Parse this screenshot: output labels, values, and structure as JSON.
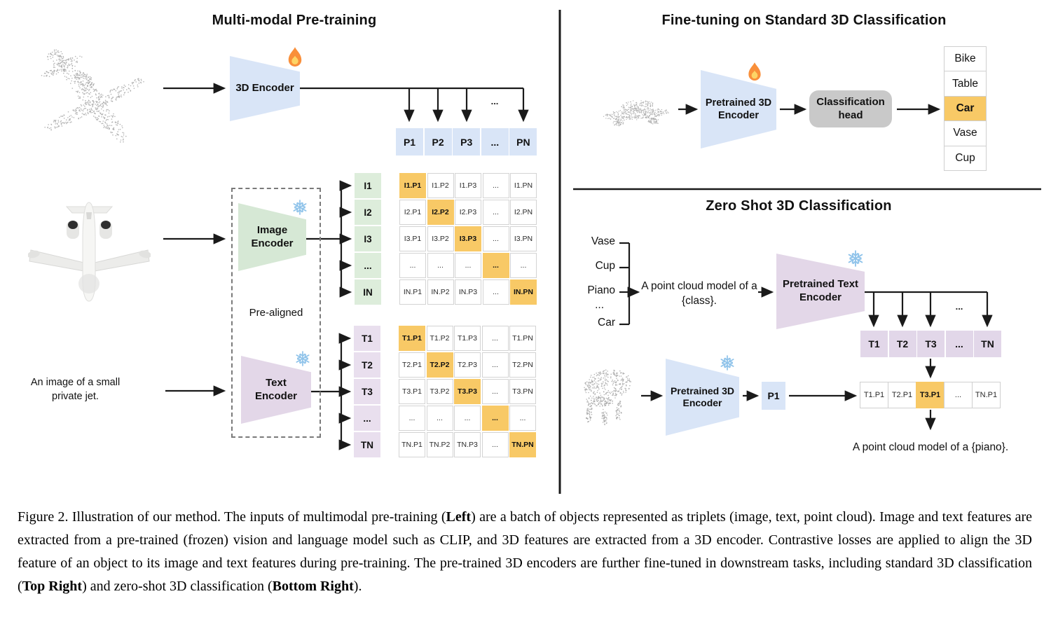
{
  "colors": {
    "blue": "#D9E5F7",
    "green": "#D6E8D5",
    "green_cell": "#DDEDDB",
    "purple": "#E3D7E8",
    "purple_cell": "#E9DFEE",
    "purple_row": "#E2D7E9",
    "highlight": "#F8C966",
    "gray": "#C9C9C9",
    "dot": "#A8A8A8",
    "snow": "#8FC3EA",
    "flame_outer": "#F98F3A",
    "flame_inner": "#FDD466",
    "line": "#1A1A1A"
  },
  "left": {
    "title": "Multi-modal Pre-training",
    "encoder_3d_label": "3D Encoder",
    "p_row": [
      "P1",
      "P2",
      "P3",
      "...",
      "PN"
    ],
    "fan_ellipsis": "...",
    "image_rows": [
      "I1",
      "I2",
      "I3",
      "...",
      "IN"
    ],
    "image_matrix": [
      [
        "I1.P1",
        "I1.P2",
        "I1.P3",
        "...",
        "I1.PN"
      ],
      [
        "I2.P1",
        "I2.P2",
        "I2.P3",
        "...",
        "I2.PN"
      ],
      [
        "I3.P1",
        "I3.P2",
        "I3.P3",
        "...",
        "I3.PN"
      ],
      [
        "...",
        "...",
        "...",
        "...",
        "..."
      ],
      [
        "IN.P1",
        "IN.P2",
        "IN.P3",
        "...",
        "IN.PN"
      ]
    ],
    "image_encoder_label": "Image Encoder",
    "pre_aligned": "Pre-aligned",
    "text_encoder_label": "Text Encoder",
    "text_prompt": "An image of a small private jet.",
    "text_rows": [
      "T1",
      "T2",
      "T3",
      "...",
      "TN"
    ],
    "text_matrix": [
      [
        "T1.P1",
        "T1.P2",
        "T1.P3",
        "...",
        "T1.PN"
      ],
      [
        "T2.P1",
        "T2.P2",
        "T2.P3",
        "...",
        "T2.PN"
      ],
      [
        "T3.P1",
        "T3.P2",
        "T3.P3",
        "...",
        "T3.PN"
      ],
      [
        "...",
        "...",
        "...",
        "...",
        "..."
      ],
      [
        "TN.P1",
        "TN.P2",
        "TN.P3",
        "...",
        "TN.PN"
      ]
    ]
  },
  "top_right": {
    "title": "Fine-tuning on Standard 3D Classification",
    "encoder_label": "Pretrained 3D Encoder",
    "head_label": "Classification head",
    "classes": [
      "Bike",
      "Table",
      "Car",
      "Vase",
      "Cup"
    ],
    "predicted_class": "Car"
  },
  "bottom_right": {
    "title": "Zero Shot 3D Classification",
    "class_list": [
      "Vase",
      "Cup",
      "Piano",
      "...",
      "Car"
    ],
    "prompt": "A point cloud model of a {class}.",
    "text_encoder_label": "Pretrained Text Encoder",
    "fan_ellipsis": "...",
    "t_row": [
      "T1",
      "T2",
      "T3",
      "...",
      "TN"
    ],
    "encoder_3d_label": "Pretrained 3D Encoder",
    "p_box": "P1",
    "tp_row": [
      "T1.P1",
      "T2.P1",
      "T3.P1",
      "...",
      "TN.P1"
    ],
    "predicted_cell": "T3.P1",
    "result": "A point cloud model of a {piano}."
  },
  "caption": {
    "segments": [
      {
        "t": "Figure 2. Illustration of our method. The inputs of multimodal pre-training ("
      },
      {
        "t": "Left",
        "b": true
      },
      {
        "t": ") are a batch of objects represented as triplets (image, text, point cloud). Image and text features are extracted from a pre-trained (frozen) vision and language model such as CLIP, and 3D features are extracted from a 3D encoder. Contrastive losses are applied to align the 3D feature of an object to its image and text features during pre-training. The pre-trained 3D encoders are further fine-tuned in downstream tasks, including standard 3D classification ("
      },
      {
        "t": "Top Right",
        "b": true
      },
      {
        "t": ") and zero-shot 3D classification ("
      },
      {
        "t": "Bottom Right",
        "b": true
      },
      {
        "t": ")."
      }
    ]
  }
}
